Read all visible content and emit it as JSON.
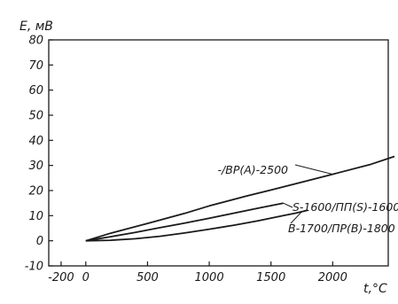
{
  "chart_data": {
    "type": "line",
    "ylabel": "E, мВ",
    "xlabel": "t,°C",
    "xlim": [
      -300,
      2450
    ],
    "ylim": [
      -10,
      80
    ],
    "x_ticks": [
      -200,
      0,
      500,
      1000,
      1500,
      2000
    ],
    "x_tick_labels": [
      "-200",
      "0",
      "500",
      "1000",
      "1500",
      "2000"
    ],
    "y_ticks": [
      -10,
      0,
      10,
      20,
      30,
      40,
      50,
      60,
      70,
      80
    ],
    "y_tick_labels": [
      "-10",
      "0",
      "10",
      "20",
      "30",
      "40",
      "50",
      "60",
      "70",
      "80"
    ],
    "grid": false,
    "series": [
      {
        "name": "-/ВР(А)-2500",
        "x": [
          0,
          200,
          500,
          800,
          1000,
          1300,
          1500,
          1800,
          2000,
          2300,
          2500
        ],
        "y": [
          0,
          3.0,
          6.9,
          10.9,
          13.9,
          17.8,
          20.2,
          24.0,
          26.5,
          30.3,
          33.6
        ]
      },
      {
        "name": "S-1600/ПП(S)-1600",
        "x": [
          0,
          200,
          400,
          600,
          800,
          1000,
          1200,
          1400,
          1600
        ],
        "y": [
          0,
          1.6,
          3.3,
          5.2,
          7.0,
          9.0,
          11.0,
          13.0,
          15.0
        ]
      },
      {
        "name": "В-1700/ПР(В)-1800",
        "x": [
          0,
          200,
          400,
          600,
          800,
          1000,
          1200,
          1400,
          1600,
          1700,
          1800
        ],
        "y": [
          0,
          0.2,
          0.8,
          1.8,
          3.1,
          4.6,
          6.2,
          8.0,
          10.0,
          11.0,
          12.2
        ]
      }
    ],
    "annotations": [
      {
        "series": 0,
        "text": "-/ВР(А)-2500",
        "at_x": 2000,
        "at_y": 26.5
      },
      {
        "series": 1,
        "text": "S-1600/ПП(S)-1600",
        "at_x": 1600,
        "at_y": 15.0
      },
      {
        "series": 2,
        "text": "В-1700/ПР(В)-1800",
        "at_x": 1750,
        "at_y": 11.6
      }
    ]
  }
}
